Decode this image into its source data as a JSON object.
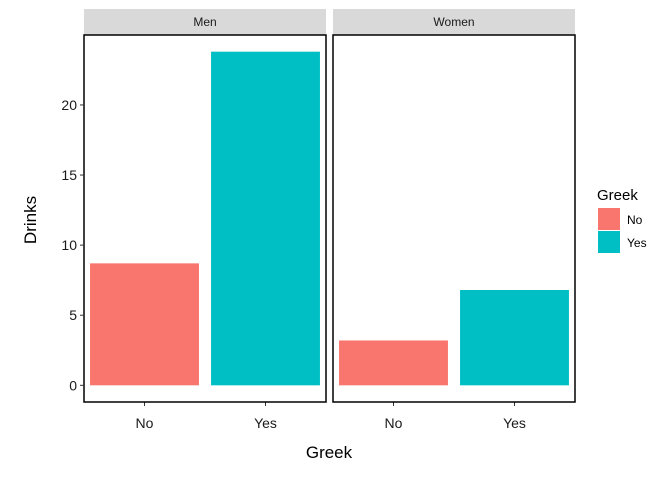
{
  "chart_data": {
    "type": "bar",
    "facets": [
      "Men",
      "Women"
    ],
    "categories": [
      "No",
      "Yes"
    ],
    "values": {
      "Men": [
        8.7,
        23.8
      ],
      "Women": [
        3.2,
        6.8
      ]
    },
    "xlabel": "Greek",
    "ylabel": "Drinks",
    "yticks": [
      0,
      5,
      10,
      15,
      20
    ],
    "ylim": [
      -1.19,
      24.99
    ],
    "grid": false,
    "legend": {
      "title": "Greek",
      "position": "right",
      "entries": [
        "No",
        "Yes"
      ]
    },
    "colors": {
      "No": "#F8766D",
      "Yes": "#00BFC4",
      "strip": "#D9D9D9",
      "panel_border": "#000000"
    }
  }
}
